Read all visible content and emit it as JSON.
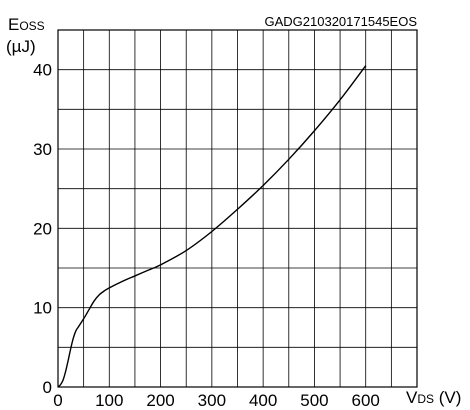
{
  "chart_data": {
    "type": "line",
    "title": "",
    "code_label": "GADG210320171545EOS",
    "ylabel": {
      "main": "E",
      "sub": "OSS",
      "unit": "(µJ)"
    },
    "xlabel": {
      "main": "V",
      "sub": "DS",
      "unit": " (V)"
    },
    "xlim": [
      0,
      700
    ],
    "ylim": [
      0,
      45
    ],
    "x_ticks": [
      0,
      100,
      200,
      300,
      400,
      500,
      600
    ],
    "y_ticks": [
      0,
      10,
      20,
      30,
      40
    ],
    "grid": true,
    "series": [
      {
        "x": [
          0,
          5,
          10,
          15,
          20,
          25,
          30,
          35,
          40,
          50,
          60,
          70,
          80,
          90,
          100,
          125,
          150,
          175,
          200,
          250,
          300,
          350,
          400,
          450,
          500,
          550,
          600
        ],
        "y": [
          0,
          0.3,
          0.9,
          2.0,
          3.4,
          4.9,
          6.2,
          7.1,
          7.6,
          8.6,
          9.7,
          10.8,
          11.6,
          12.1,
          12.5,
          13.3,
          14.0,
          14.7,
          15.4,
          17.2,
          19.6,
          22.4,
          25.4,
          28.7,
          32.3,
          36.2,
          40.5
        ]
      }
    ]
  }
}
